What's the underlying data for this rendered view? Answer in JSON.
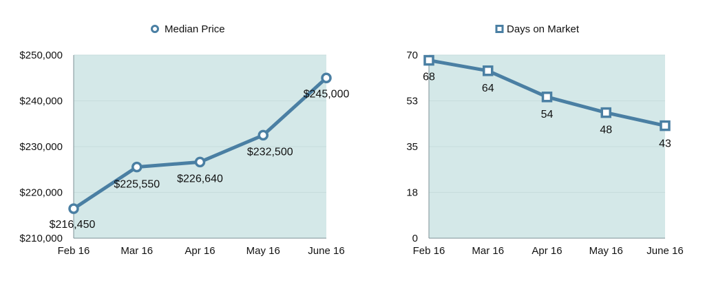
{
  "colors": {
    "series": "#4a7fa3",
    "plot_bg": "#d4e8e8",
    "grid": "#c6dcdc",
    "axis": "#7d8f95",
    "marker_fill": "#ffffff"
  },
  "chart_data": [
    {
      "type": "line",
      "categories": [
        "Feb 16",
        "Mar 16",
        "Apr 16",
        "May 16",
        "June 16"
      ],
      "series": [
        {
          "name": "Median Price",
          "values": [
            216450,
            225550,
            226640,
            232500,
            245000
          ]
        }
      ],
      "data_labels": [
        "$216,450",
        "$225,550",
        "$226,640",
        "$232,500",
        "$245,000"
      ],
      "y_ticks": [
        210000,
        220000,
        230000,
        240000,
        250000
      ],
      "y_tick_labels": [
        "$210,000",
        "$220,000",
        "$230,000",
        "$240,000",
        "$250,000"
      ],
      "ylim": [
        210000,
        250000
      ],
      "marker": "circle",
      "legend": "top-center",
      "grid": true
    },
    {
      "type": "line",
      "categories": [
        "Feb 16",
        "Mar 16",
        "Apr 16",
        "May 16",
        "June 16"
      ],
      "series": [
        {
          "name": "Days on Market",
          "values": [
            68,
            64,
            54,
            48,
            43
          ]
        }
      ],
      "data_labels": [
        "68",
        "64",
        "54",
        "48",
        "43"
      ],
      "y_ticks": [
        0,
        17.5,
        35,
        52.5,
        70
      ],
      "y_tick_labels": [
        "0",
        "18",
        "35",
        "53",
        "70"
      ],
      "ylim": [
        0,
        70
      ],
      "marker": "square",
      "legend": "top-center",
      "grid": true
    }
  ]
}
